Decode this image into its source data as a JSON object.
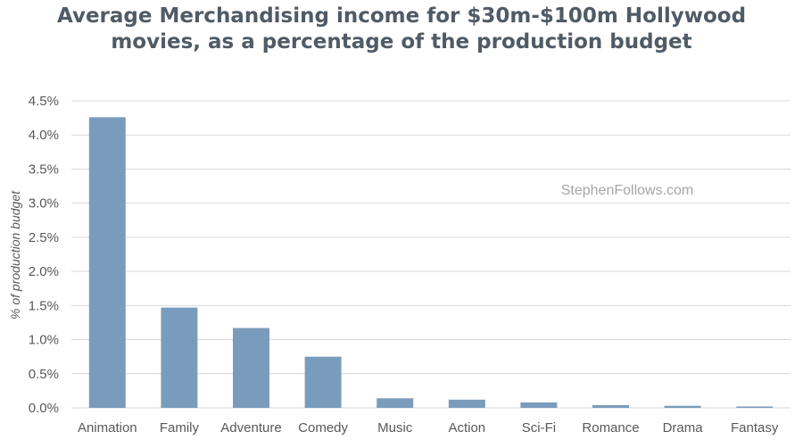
{
  "title_line1": "Average Merchandising income for $30m-$100m Hollywood",
  "title_line2": "movies, as a percentage of the production budget",
  "watermark": "StephenFollows.com",
  "colors": {
    "bar": "#7a9cbc",
    "grid": "#d9d9d9",
    "title": "#4f5b66",
    "text": "#595959"
  },
  "chart_data": {
    "type": "bar",
    "title": "Average Merchandising income for $30m-$100m Hollywood movies, as a percentage of the production budget",
    "xlabel": "",
    "ylabel": "% of production budget",
    "categories": [
      "Animation",
      "Family",
      "Adventure",
      "Comedy",
      "Music",
      "Action",
      "Sci-Fi",
      "Romance",
      "Drama",
      "Fantasy"
    ],
    "values": [
      4.26,
      1.47,
      1.17,
      0.75,
      0.14,
      0.12,
      0.08,
      0.04,
      0.03,
      0.02
    ],
    "ylim": [
      0,
      4.5
    ],
    "yticks": [
      "0.0%",
      "0.5%",
      "1.0%",
      "1.5%",
      "2.0%",
      "2.5%",
      "3.0%",
      "3.5%",
      "4.0%",
      "4.5%"
    ],
    "grid": true,
    "legend": "none"
  }
}
